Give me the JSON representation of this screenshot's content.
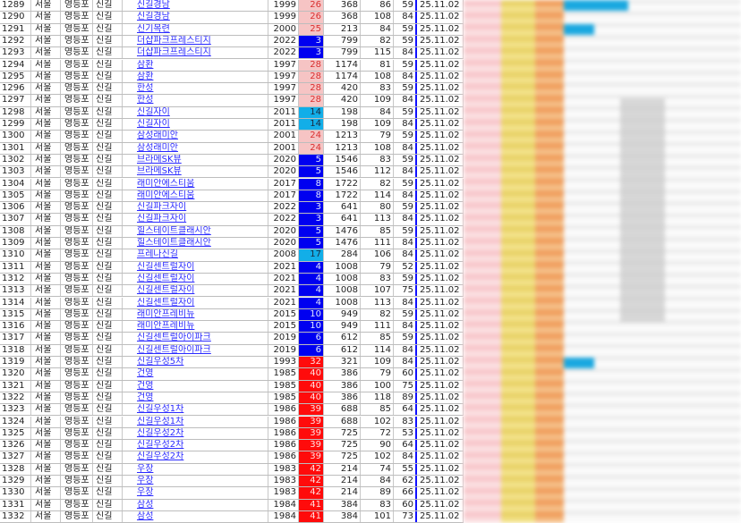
{
  "colors": {
    "link": "#2a2aff",
    "age_pink_bg": "#f6c4c4",
    "age_pink_text": "#d93030",
    "age_blue_bg": "#0000f0",
    "age_blue_text": "#dfe6ff",
    "age_cyan_bg": "#12aee8",
    "age_cyan_text": "#1a2a40",
    "age_red_bg": "#ff0b0b",
    "age_red_text": "#ffe0e0"
  },
  "rows": [
    {
      "no": "1289",
      "city": "서울",
      "gu": "영등포",
      "dong": "신길",
      "name": "신길경남",
      "year": "1999",
      "age": "26",
      "tone": "pink",
      "units": "368",
      "area": "86",
      "area2": "59",
      "date": "25.11.02"
    },
    {
      "no": "1290",
      "city": "서울",
      "gu": "영등포",
      "dong": "신길",
      "name": "신길경남",
      "year": "1999",
      "age": "26",
      "tone": "pink",
      "units": "368",
      "area": "108",
      "area2": "84",
      "date": "25.11.02"
    },
    {
      "no": "1291",
      "city": "서울",
      "gu": "영등포",
      "dong": "신길",
      "name": "신기목련",
      "year": "2000",
      "age": "25",
      "tone": "pink",
      "units": "213",
      "area": "84",
      "area2": "59",
      "date": "25.11.02"
    },
    {
      "no": "1292",
      "city": "서울",
      "gu": "영등포",
      "dong": "신길",
      "name": "더샵파크프레스티지",
      "year": "2022",
      "age": "3",
      "tone": "blue",
      "units": "799",
      "area": "82",
      "area2": "59",
      "date": "25.11.02"
    },
    {
      "no": "1293",
      "city": "서울",
      "gu": "영등포",
      "dong": "신길",
      "name": "더샵파크프레스티지",
      "year": "2022",
      "age": "3",
      "tone": "blue",
      "units": "799",
      "area": "115",
      "area2": "84",
      "date": "25.11.02"
    },
    {
      "no": "1294",
      "city": "서울",
      "gu": "영등포",
      "dong": "신길",
      "name": "삼환",
      "year": "1997",
      "age": "28",
      "tone": "pink",
      "units": "1174",
      "area": "81",
      "area2": "59",
      "date": "25.11.02"
    },
    {
      "no": "1295",
      "city": "서울",
      "gu": "영등포",
      "dong": "신길",
      "name": "삼환",
      "year": "1997",
      "age": "28",
      "tone": "pink",
      "units": "1174",
      "area": "108",
      "area2": "84",
      "date": "25.11.02"
    },
    {
      "no": "1296",
      "city": "서울",
      "gu": "영등포",
      "dong": "신길",
      "name": "한성",
      "year": "1997",
      "age": "28",
      "tone": "pink",
      "units": "420",
      "area": "83",
      "area2": "59",
      "date": "25.11.02"
    },
    {
      "no": "1297",
      "city": "서울",
      "gu": "영등포",
      "dong": "신길",
      "name": "한성",
      "year": "1997",
      "age": "28",
      "tone": "pink",
      "units": "420",
      "area": "109",
      "area2": "84",
      "date": "25.11.02"
    },
    {
      "no": "1298",
      "city": "서울",
      "gu": "영등포",
      "dong": "신길",
      "name": "신길자이",
      "year": "2011",
      "age": "14",
      "tone": "cyan",
      "units": "198",
      "area": "84",
      "area2": "59",
      "date": "25.11.02"
    },
    {
      "no": "1299",
      "city": "서울",
      "gu": "영등포",
      "dong": "신길",
      "name": "신길자이",
      "year": "2011",
      "age": "14",
      "tone": "cyan",
      "units": "198",
      "area": "109",
      "area2": "84",
      "date": "25.11.02"
    },
    {
      "no": "1300",
      "city": "서울",
      "gu": "영등포",
      "dong": "신길",
      "name": "삼성래미안",
      "year": "2001",
      "age": "24",
      "tone": "pink",
      "units": "1213",
      "area": "79",
      "area2": "59",
      "date": "25.11.02"
    },
    {
      "no": "1301",
      "city": "서울",
      "gu": "영등포",
      "dong": "신길",
      "name": "삼성래미안",
      "year": "2001",
      "age": "24",
      "tone": "pink",
      "units": "1213",
      "area": "108",
      "area2": "84",
      "date": "25.11.02"
    },
    {
      "no": "1302",
      "city": "서울",
      "gu": "영등포",
      "dong": "신길",
      "name": "브라메SK뷰",
      "year": "2020",
      "age": "5",
      "tone": "blue",
      "units": "1546",
      "area": "83",
      "area2": "59",
      "date": "25.11.02"
    },
    {
      "no": "1303",
      "city": "서울",
      "gu": "영등포",
      "dong": "신길",
      "name": "브라메SK뷰",
      "year": "2020",
      "age": "5",
      "tone": "blue",
      "units": "1546",
      "area": "112",
      "area2": "84",
      "date": "25.11.02"
    },
    {
      "no": "1304",
      "city": "서울",
      "gu": "영등포",
      "dong": "신길",
      "name": "래미안에스티움",
      "year": "2017",
      "age": "8",
      "tone": "blue",
      "units": "1722",
      "area": "82",
      "area2": "59",
      "date": "25.11.02"
    },
    {
      "no": "1305",
      "city": "서울",
      "gu": "영등포",
      "dong": "신길",
      "name": "래미안에스티움",
      "year": "2017",
      "age": "8",
      "tone": "blue",
      "units": "1722",
      "area": "114",
      "area2": "84",
      "date": "25.11.02"
    },
    {
      "no": "1306",
      "city": "서울",
      "gu": "영등포",
      "dong": "신길",
      "name": "신길파크자이",
      "year": "2022",
      "age": "3",
      "tone": "blue",
      "units": "641",
      "area": "80",
      "area2": "59",
      "date": "25.11.02"
    },
    {
      "no": "1307",
      "city": "서울",
      "gu": "영등포",
      "dong": "신길",
      "name": "신길파크자이",
      "year": "2022",
      "age": "3",
      "tone": "blue",
      "units": "641",
      "area": "113",
      "area2": "84",
      "date": "25.11.02"
    },
    {
      "no": "1308",
      "city": "서울",
      "gu": "영등포",
      "dong": "신길",
      "name": "힐스테이트클래시안",
      "year": "2020",
      "age": "5",
      "tone": "blue",
      "units": "1476",
      "area": "85",
      "area2": "59",
      "date": "25.11.02"
    },
    {
      "no": "1309",
      "city": "서울",
      "gu": "영등포",
      "dong": "신길",
      "name": "힐스테이트클래시안",
      "year": "2020",
      "age": "5",
      "tone": "blue",
      "units": "1476",
      "area": "111",
      "area2": "84",
      "date": "25.11.02"
    },
    {
      "no": "1310",
      "city": "서울",
      "gu": "영등포",
      "dong": "신길",
      "name": "프레나신길",
      "year": "2008",
      "age": "17",
      "tone": "cyan",
      "units": "284",
      "area": "106",
      "area2": "84",
      "date": "25.11.02"
    },
    {
      "no": "1311",
      "city": "서울",
      "gu": "영등포",
      "dong": "신길",
      "name": "신길센트럴자이",
      "year": "2021",
      "age": "4",
      "tone": "blue",
      "units": "1008",
      "area": "79",
      "area2": "52",
      "date": "25.11.02"
    },
    {
      "no": "1312",
      "city": "서울",
      "gu": "영등포",
      "dong": "신길",
      "name": "신길센트럴자이",
      "year": "2021",
      "age": "4",
      "tone": "blue",
      "units": "1008",
      "area": "83",
      "area2": "59",
      "date": "25.11.02"
    },
    {
      "no": "1313",
      "city": "서울",
      "gu": "영등포",
      "dong": "신길",
      "name": "신길센트럴자이",
      "year": "2021",
      "age": "4",
      "tone": "blue",
      "units": "1008",
      "area": "107",
      "area2": "75",
      "date": "25.11.02"
    },
    {
      "no": "1314",
      "city": "서울",
      "gu": "영등포",
      "dong": "신길",
      "name": "신길센트럴자이",
      "year": "2021",
      "age": "4",
      "tone": "blue",
      "units": "1008",
      "area": "113",
      "area2": "84",
      "date": "25.11.02"
    },
    {
      "no": "1315",
      "city": "서울",
      "gu": "영등포",
      "dong": "신길",
      "name": "래미안프레비뉴",
      "year": "2015",
      "age": "10",
      "tone": "blue",
      "units": "949",
      "area": "82",
      "area2": "59",
      "date": "25.11.02"
    },
    {
      "no": "1316",
      "city": "서울",
      "gu": "영등포",
      "dong": "신길",
      "name": "래미안프레비뉴",
      "year": "2015",
      "age": "10",
      "tone": "blue",
      "units": "949",
      "area": "111",
      "area2": "84",
      "date": "25.11.02"
    },
    {
      "no": "1317",
      "city": "서울",
      "gu": "영등포",
      "dong": "신길",
      "name": "신길센트럴아이파크",
      "year": "2019",
      "age": "6",
      "tone": "blue",
      "units": "612",
      "area": "85",
      "area2": "59",
      "date": "25.11.02"
    },
    {
      "no": "1318",
      "city": "서울",
      "gu": "영등포",
      "dong": "신길",
      "name": "신길센트럴아이파크",
      "year": "2019",
      "age": "6",
      "tone": "blue",
      "units": "612",
      "area": "114",
      "area2": "84",
      "date": "25.11.02"
    },
    {
      "no": "1319",
      "city": "서울",
      "gu": "영등포",
      "dong": "신길",
      "name": "신길우성5차",
      "year": "1993",
      "age": "32",
      "tone": "red",
      "units": "321",
      "area": "109",
      "area2": "84",
      "date": "25.11.02"
    },
    {
      "no": "1320",
      "city": "서울",
      "gu": "영등포",
      "dong": "신길",
      "name": "건영",
      "year": "1985",
      "age": "40",
      "tone": "red",
      "units": "386",
      "area": "79",
      "area2": "60",
      "date": "25.11.02"
    },
    {
      "no": "1321",
      "city": "서울",
      "gu": "영등포",
      "dong": "신길",
      "name": "건영",
      "year": "1985",
      "age": "40",
      "tone": "red",
      "units": "386",
      "area": "100",
      "area2": "75",
      "date": "25.11.02"
    },
    {
      "no": "1322",
      "city": "서울",
      "gu": "영등포",
      "dong": "신길",
      "name": "건영",
      "year": "1985",
      "age": "40",
      "tone": "red",
      "units": "386",
      "area": "118",
      "area2": "89",
      "date": "25.11.02"
    },
    {
      "no": "1323",
      "city": "서울",
      "gu": "영등포",
      "dong": "신길",
      "name": "신길우성1차",
      "year": "1986",
      "age": "39",
      "tone": "red",
      "units": "688",
      "area": "85",
      "area2": "64",
      "date": "25.11.02"
    },
    {
      "no": "1324",
      "city": "서울",
      "gu": "영등포",
      "dong": "신길",
      "name": "신길우성1차",
      "year": "1986",
      "age": "39",
      "tone": "red",
      "units": "688",
      "area": "102",
      "area2": "83",
      "date": "25.11.02"
    },
    {
      "no": "1325",
      "city": "서울",
      "gu": "영등포",
      "dong": "신길",
      "name": "신길우성2차",
      "year": "1986",
      "age": "39",
      "tone": "red",
      "units": "725",
      "area": "72",
      "area2": "53",
      "date": "25.11.02"
    },
    {
      "no": "1326",
      "city": "서울",
      "gu": "영등포",
      "dong": "신길",
      "name": "신길우성2차",
      "year": "1986",
      "age": "39",
      "tone": "red",
      "units": "725",
      "area": "90",
      "area2": "64",
      "date": "25.11.02"
    },
    {
      "no": "1327",
      "city": "서울",
      "gu": "영등포",
      "dong": "신길",
      "name": "신길우성2차",
      "year": "1986",
      "age": "39",
      "tone": "red",
      "units": "725",
      "area": "102",
      "area2": "84",
      "date": "25.11.02"
    },
    {
      "no": "1328",
      "city": "서울",
      "gu": "영등포",
      "dong": "신길",
      "name": "우창",
      "year": "1983",
      "age": "42",
      "tone": "red",
      "units": "214",
      "area": "74",
      "area2": "55",
      "date": "25.11.02"
    },
    {
      "no": "1329",
      "city": "서울",
      "gu": "영등포",
      "dong": "신길",
      "name": "우창",
      "year": "1983",
      "age": "42",
      "tone": "red",
      "units": "214",
      "area": "84",
      "area2": "62",
      "date": "25.11.02"
    },
    {
      "no": "1330",
      "city": "서울",
      "gu": "영등포",
      "dong": "신길",
      "name": "우창",
      "year": "1983",
      "age": "42",
      "tone": "red",
      "units": "214",
      "area": "89",
      "area2": "66",
      "date": "25.11.02"
    },
    {
      "no": "1331",
      "city": "서울",
      "gu": "영등포",
      "dong": "신길",
      "name": "삼성",
      "year": "1984",
      "age": "41",
      "tone": "red",
      "units": "384",
      "area": "83",
      "area2": "60",
      "date": "25.11.02"
    },
    {
      "no": "1332",
      "city": "서울",
      "gu": "영등포",
      "dong": "신길",
      "name": "삼성",
      "year": "1984",
      "age": "41",
      "tone": "red",
      "units": "384",
      "area": "101",
      "area2": "73",
      "date": "25.11.02"
    }
  ]
}
